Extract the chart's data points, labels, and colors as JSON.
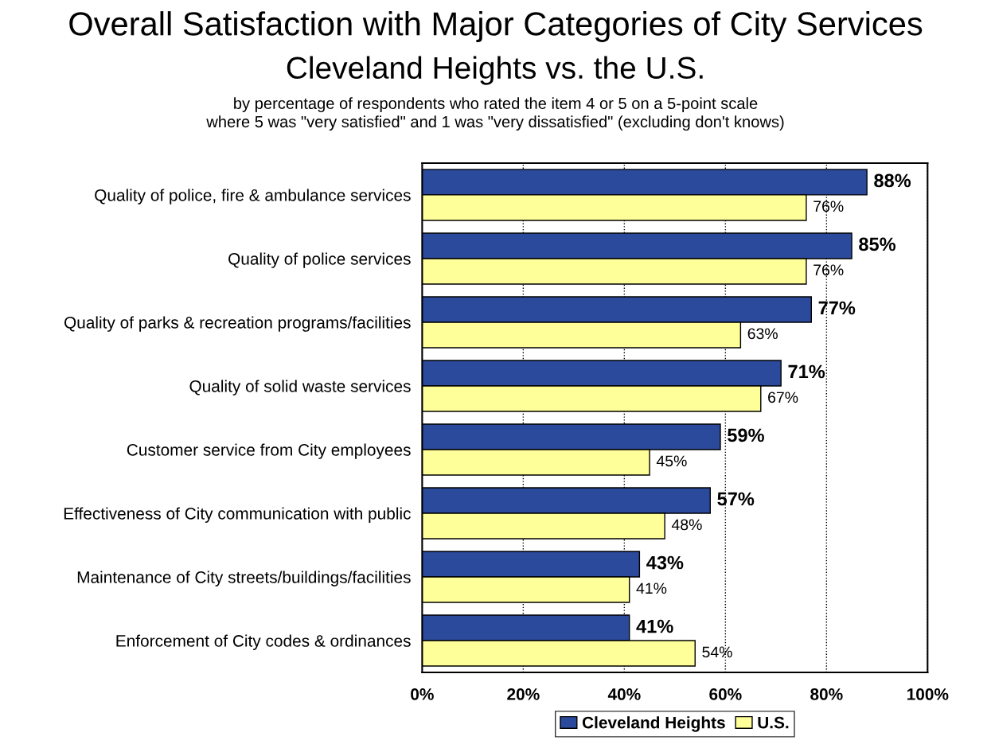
{
  "chart_data": {
    "type": "bar",
    "orientation": "horizontal",
    "title": "Overall Satisfaction with Major Categories of City Services",
    "subtitle": "Cleveland Heights vs. the U.S.",
    "annotations": [
      "by percentage of respondents who rated the item 4 or 5 on a 5-point scale\nwhere 5 was \"very satisfied\" and 1 was \"very dissatisfied\" (excluding don't knows)"
    ],
    "categories": [
      "Quality of police, fire & ambulance services",
      "Quality of police services",
      "Quality of parks & recreation programs/facilities",
      "Quality of solid waste services",
      "Customer service from City employees",
      "Effectiveness of City communication with public",
      "Maintenance of City streets/buildings/facilities",
      "Enforcement of City codes & ordinances"
    ],
    "series": [
      {
        "name": "Cleveland Heights",
        "color": "#2b4a9c",
        "values": [
          88,
          85,
          77,
          71,
          59,
          57,
          43,
          41
        ],
        "value_labels": [
          "88%",
          "85%",
          "77%",
          "71%",
          "59%",
          "57%",
          "43%",
          "41%"
        ]
      },
      {
        "name": "U.S.",
        "color": "#ffff99",
        "values": [
          76,
          76,
          63,
          67,
          45,
          48,
          41,
          54
        ],
        "value_labels": [
          "76%",
          "76%",
          "63%",
          "67%",
          "45%",
          "48%",
          "41%",
          "54%"
        ]
      }
    ],
    "xlim": [
      0,
      100
    ],
    "xticks": [
      {
        "value": 0,
        "label": "0%"
      },
      {
        "value": 20,
        "label": "20%"
      },
      {
        "value": 40,
        "label": "40%"
      },
      {
        "value": 60,
        "label": "60%"
      },
      {
        "value": 80,
        "label": "80%"
      },
      {
        "value": 100,
        "label": "100%"
      }
    ],
    "grid": "x",
    "legend": "bottom"
  }
}
